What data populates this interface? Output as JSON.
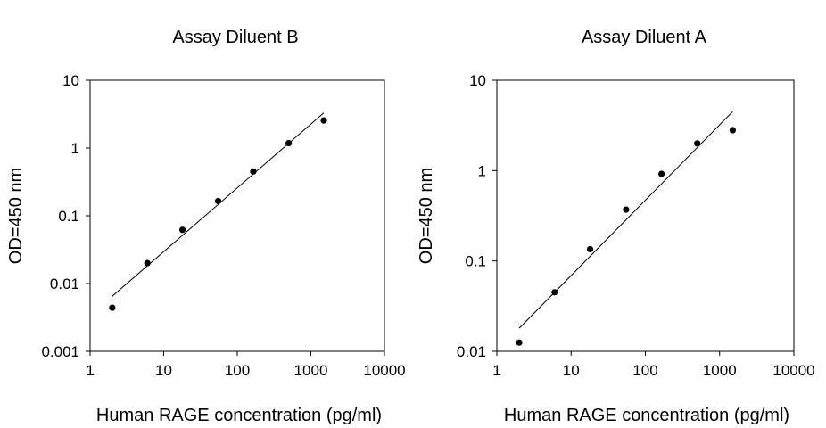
{
  "chart_data": [
    {
      "type": "scatter",
      "title": "Assay Diluent B",
      "xlabel": "Human RAGE concentration (pg/ml)",
      "ylabel": "OD=450 nm",
      "xscale": "log",
      "yscale": "log",
      "xlim": [
        1,
        10000
      ],
      "ylim": [
        0.001,
        10
      ],
      "xticks": [
        "1",
        "10",
        "100",
        "1000",
        "10000"
      ],
      "yticks": [
        "0.001",
        "0.01",
        "0.1",
        "1",
        "10"
      ],
      "grid": false,
      "series": [
        {
          "x": [
            2,
            6,
            18,
            55,
            165,
            500,
            1500
          ],
          "y": [
            0.0044,
            0.02,
            0.062,
            0.165,
            0.45,
            1.18,
            2.55
          ]
        }
      ],
      "fit_line": {
        "x": [
          2,
          1500
        ],
        "y": [
          0.0065,
          3.3
        ]
      }
    },
    {
      "type": "scatter",
      "title": "Assay Diluent A",
      "xlabel": "Human RAGE concentration (pg/ml)",
      "ylabel": "OD=450 nm",
      "xscale": "log",
      "yscale": "log",
      "xlim": [
        1,
        10000
      ],
      "ylim": [
        0.01,
        10
      ],
      "xticks": [
        "1",
        "10",
        "100",
        "1000",
        "10000"
      ],
      "yticks": [
        "0.01",
        "0.1",
        "1",
        "10"
      ],
      "grid": false,
      "series": [
        {
          "x": [
            2,
            6,
            18,
            55,
            165,
            500,
            1500
          ],
          "y": [
            0.0125,
            0.045,
            0.135,
            0.37,
            0.92,
            2.0,
            2.8
          ]
        }
      ],
      "fit_line": {
        "x": [
          2,
          1500
        ],
        "y": [
          0.018,
          4.5
        ]
      }
    }
  ]
}
